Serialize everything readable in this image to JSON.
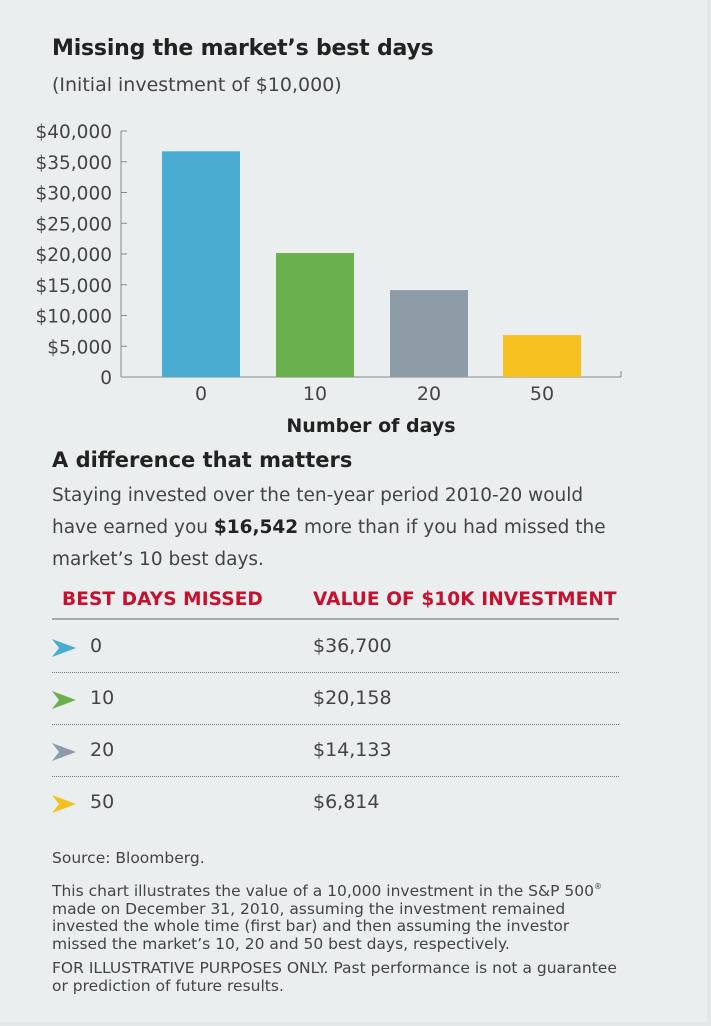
{
  "title": "Missing the market’s best days",
  "subtitle": "(Initial investment of $10,000)",
  "chart_data": {
    "type": "bar",
    "categories": [
      "0",
      "10",
      "20",
      "50"
    ],
    "values": [
      36700,
      20158,
      14133,
      6814
    ],
    "colors": [
      "#4bacd1",
      "#6ab04c",
      "#8e9ca8",
      "#f5c020"
    ],
    "xlabel": "Number of days",
    "ylabel": "",
    "ylim": [
      0,
      40000
    ],
    "yticks": [
      0,
      5000,
      10000,
      15000,
      20000,
      25000,
      30000,
      35000,
      40000
    ],
    "ytick_labels": [
      "0",
      "$5,000",
      "$10,000",
      "$15,000",
      "$20,000",
      "$25,000",
      "$30,000",
      "$35,000",
      "$40,000"
    ],
    "grid": false
  },
  "section": {
    "heading": "A difference that matters",
    "text_before": "Staying invested over the ten-year period 2010-20 would have earned you ",
    "highlight": "$16,542",
    "text_after": " more than if you had missed the market’s 10 best days."
  },
  "table": {
    "headers": [
      "BEST DAYS MISSED",
      "VALUE OF $10K INVESTMENT"
    ],
    "rows": [
      {
        "days": "0",
        "value": "$36,700",
        "color": "#4bacd1"
      },
      {
        "days": "10",
        "value": "$20,158",
        "color": "#6ab04c"
      },
      {
        "days": "20",
        "value": "$14,133",
        "color": "#8e9ca8"
      },
      {
        "days": "50",
        "value": "$6,814",
        "color": "#f5c020"
      }
    ]
  },
  "footer": {
    "source": "Source: Bloomberg.",
    "note_before": "This chart illustrates the value of a 10,000 investment in the S&P 500",
    "note_sup": "®",
    "note_after": " made on December 31, 2010, assuming the investment remained invested the whole time (first bar) and then assuming the investor missed the market’s 10, 20 and 50 best days, respectively.",
    "disclaimer": "FOR ILLUSTRATIVE PURPOSES ONLY. Past performance is not a guarantee or prediction of future results."
  }
}
